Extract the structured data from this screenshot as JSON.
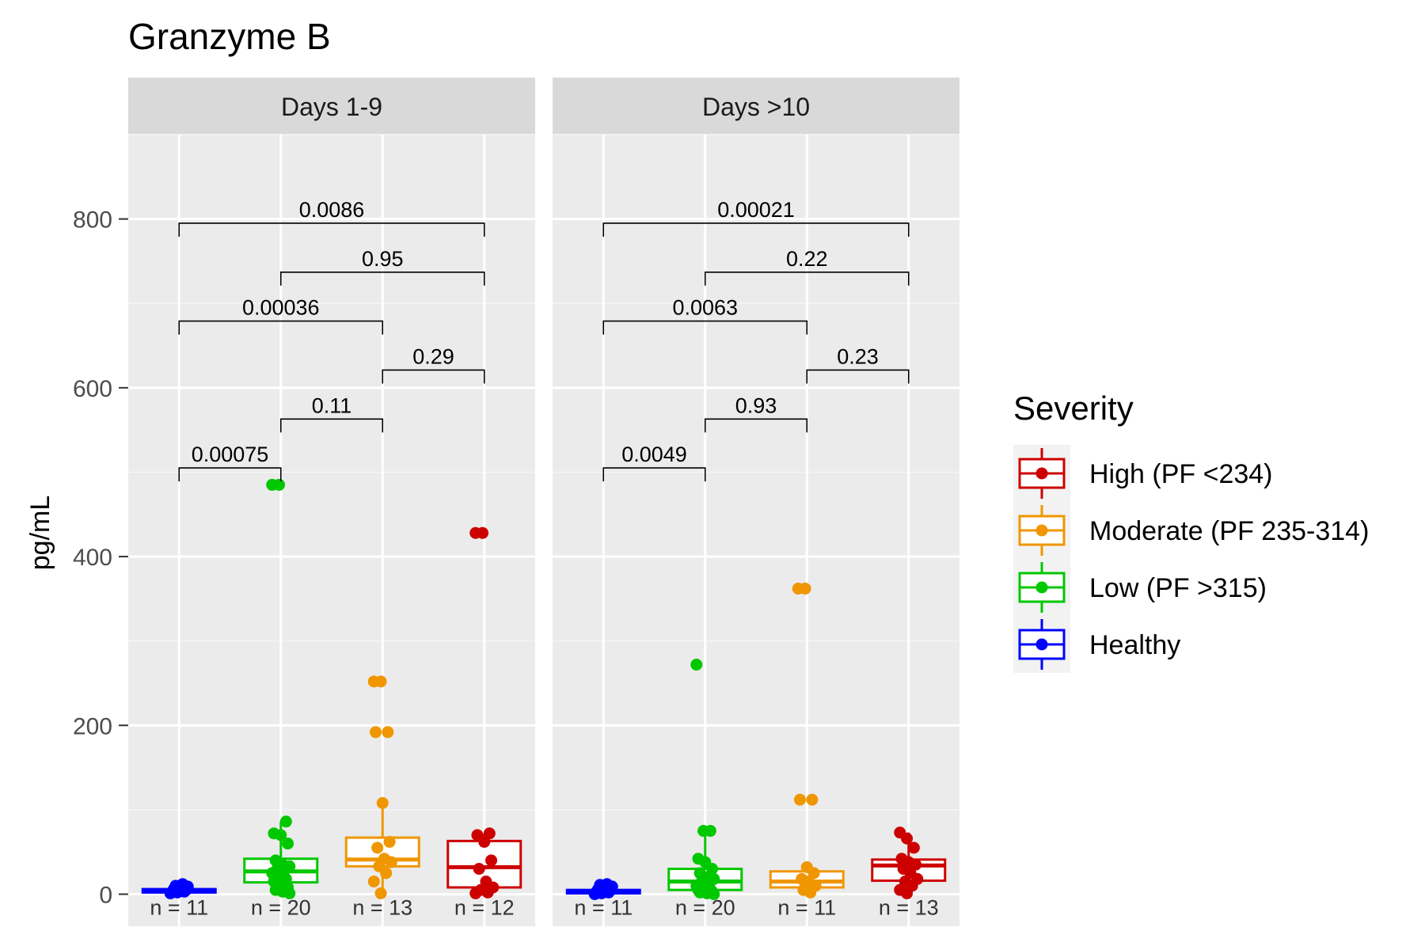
{
  "chart_data": {
    "type": "box",
    "title": "Granzyme B",
    "ylabel": "pg/mL",
    "xlabel": "",
    "ylim": [
      -38,
      900
    ],
    "yticks": [
      0,
      200,
      400,
      600,
      800
    ],
    "categories": [
      "Healthy",
      "Low (PF >315)",
      "Moderate (PF 235-314)",
      "High (PF <234)"
    ],
    "colors": {
      "Healthy": "#0000FF",
      "Low (PF >315)": "#00C800",
      "Moderate (PF 235-314)": "#F09600",
      "High (PF <234)": "#CD0000"
    },
    "legend": {
      "title": "Severity",
      "position": "right",
      "entries": [
        "High (PF <234)",
        "Moderate (PF 235-314)",
        "Low (PF >315)",
        "Healthy"
      ]
    },
    "panels": [
      {
        "label": "Days 1-9",
        "groups": [
          {
            "category": "Healthy",
            "n_label": "n = 11",
            "q1": 2,
            "median": 4,
            "q3": 6,
            "whisker_low": 0,
            "whisker_high": 11,
            "points": [
              1,
              2,
              3,
              3,
              4,
              5,
              6,
              7,
              9,
              10,
              12
            ]
          },
          {
            "category": "Low (PF >315)",
            "n_label": "n = 20",
            "q1": 14,
            "median": 27,
            "q3": 42,
            "whisker_low": 0,
            "whisker_high": 86,
            "points": [
              485,
              485,
              86,
              72,
              70,
              60,
              40,
              35,
              33,
              30,
              28,
              25,
              20,
              18,
              15,
              12,
              8,
              5,
              3,
              1
            ]
          },
          {
            "category": "Moderate (PF 235-314)",
            "n_label": "n = 13",
            "q1": 33,
            "median": 41,
            "q3": 67,
            "whisker_low": 0,
            "whisker_high": 108,
            "points": [
              252,
              252,
              192,
              192,
              108,
              62,
              55,
              42,
              38,
              33,
              25,
              15,
              1
            ]
          },
          {
            "category": "High (PF <234)",
            "n_label": "n = 12",
            "q1": 8,
            "median": 32,
            "q3": 63,
            "whisker_low": 0,
            "whisker_high": 72,
            "points": [
              428,
              428,
              72,
              70,
              62,
              40,
              30,
              15,
              8,
              5,
              2,
              1
            ]
          }
        ],
        "comparisons": [
          {
            "pair": [
              "Healthy",
              "Low (PF >315)"
            ],
            "p": "0.00075",
            "y": 505
          },
          {
            "pair": [
              "Low (PF >315)",
              "Moderate (PF 235-314)"
            ],
            "p": "0.11",
            "y": 563
          },
          {
            "pair": [
              "Moderate (PF 235-314)",
              "High (PF <234)"
            ],
            "p": "0.29",
            "y": 621
          },
          {
            "pair": [
              "Healthy",
              "Moderate (PF 235-314)"
            ],
            "p": "0.00036",
            "y": 679
          },
          {
            "pair": [
              "Low (PF >315)",
              "High (PF <234)"
            ],
            "p": "0.95",
            "y": 737
          },
          {
            "pair": [
              "Healthy",
              "High (PF <234)"
            ],
            "p": "0.0086",
            "y": 795
          }
        ]
      },
      {
        "label": "Days >10",
        "groups": [
          {
            "category": "Healthy",
            "n_label": "n = 11",
            "q1": 1,
            "median": 3,
            "q3": 5,
            "whisker_low": 0,
            "whisker_high": 12,
            "points": [
              0,
              1,
              2,
              3,
              4,
              5,
              6,
              8,
              9,
              11,
              12
            ]
          },
          {
            "category": "Low (PF >315)",
            "n_label": "n = 20",
            "q1": 5,
            "median": 15,
            "q3": 30,
            "whisker_low": 0,
            "whisker_high": 75,
            "points": [
              272,
              75,
              75,
              42,
              38,
              30,
              25,
              20,
              18,
              15,
              12,
              10,
              8,
              6,
              5,
              4,
              3,
              2,
              1,
              0
            ]
          },
          {
            "category": "Moderate (PF 235-314)",
            "n_label": "n = 11",
            "q1": 8,
            "median": 15,
            "q3": 27,
            "whisker_low": 0,
            "whisker_high": 32,
            "points": [
              362,
              362,
              112,
              112,
              32,
              25,
              18,
              15,
              10,
              5,
              2
            ]
          },
          {
            "category": "High (PF <234)",
            "n_label": "n = 13",
            "q1": 16,
            "median": 34,
            "q3": 41,
            "whisker_low": 0,
            "whisker_high": 73,
            "points": [
              73,
              66,
              55,
              42,
              38,
              35,
              30,
              25,
              18,
              15,
              10,
              5,
              1
            ]
          }
        ],
        "comparisons": [
          {
            "pair": [
              "Healthy",
              "Low (PF >315)"
            ],
            "p": "0.0049",
            "y": 505
          },
          {
            "pair": [
              "Low (PF >315)",
              "Moderate (PF 235-314)"
            ],
            "p": "0.93",
            "y": 563
          },
          {
            "pair": [
              "Moderate (PF 235-314)",
              "High (PF <234)"
            ],
            "p": "0.23",
            "y": 621
          },
          {
            "pair": [
              "Healthy",
              "Moderate (PF 235-314)"
            ],
            "p": "0.0063",
            "y": 679
          },
          {
            "pair": [
              "Low (PF >315)",
              "High (PF <234)"
            ],
            "p": "0.22",
            "y": 737
          },
          {
            "pair": [
              "Healthy",
              "High (PF <234)"
            ],
            "p": "0.00021",
            "y": 795
          }
        ]
      }
    ]
  }
}
